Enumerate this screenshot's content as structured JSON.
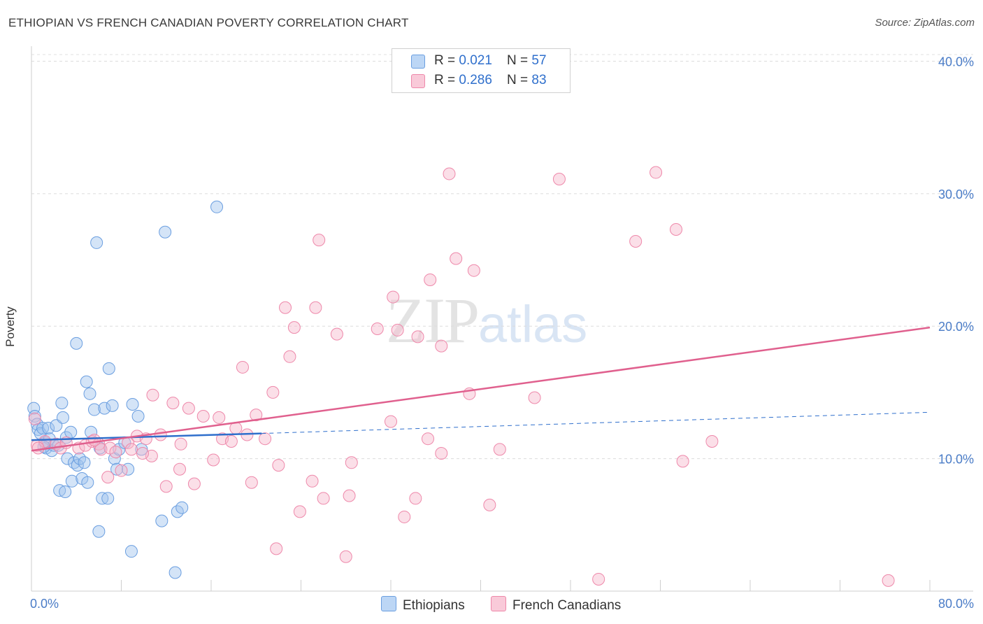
{
  "title": "ETHIOPIAN VS FRENCH CANADIAN POVERTY CORRELATION CHART",
  "source": "Source: ZipAtlas.com",
  "watermark": {
    "zip": "ZIP",
    "atlas": "atlas"
  },
  "legend": [
    {
      "r_label": "R = ",
      "r_value": "0.021",
      "n_label": "N = ",
      "n_value": "57",
      "color": "#9fc4ee",
      "stroke": "#6a9ee0"
    },
    {
      "r_label": "R = ",
      "r_value": "0.286",
      "n_label": "N = ",
      "n_value": "83",
      "color": "#f6b8cc",
      "stroke": "#ee88aa"
    }
  ],
  "bottom_legend": [
    "Ethiopians",
    "French Canadians"
  ],
  "chart_data": {
    "type": "scatter",
    "title": "ETHIOPIAN VS FRENCH CANADIAN POVERTY CORRELATION CHART",
    "xlabel": "",
    "ylabel": "Poverty",
    "xlim": [
      0,
      80
    ],
    "ylim": [
      0,
      40.5
    ],
    "x_tick_labels": [
      "0.0%",
      "80.0%"
    ],
    "y_ticks": [
      10,
      20,
      30,
      40
    ],
    "y_tick_labels": [
      "10.0%",
      "20.0%",
      "30.0%",
      "40.0%"
    ],
    "grid": true,
    "series": [
      {
        "name": "Ethiopians",
        "color": "#6a9ee0",
        "fill": "#9fc4ee",
        "trend": {
          "x0": 0,
          "y0": 11.4,
          "x1": 20.5,
          "y1": 11.9,
          "dash_to_x": 80,
          "dash_to_y": 13.5,
          "color": "#2f6fcc"
        },
        "points": [
          [
            0.2,
            13.8
          ],
          [
            0.3,
            13.2
          ],
          [
            0.5,
            12.6
          ],
          [
            0.6,
            12.2
          ],
          [
            0.8,
            11.9
          ],
          [
            1.0,
            12.3
          ],
          [
            1.2,
            11.2
          ],
          [
            1.3,
            10.8
          ],
          [
            1.5,
            12.3
          ],
          [
            1.6,
            11.5
          ],
          [
            1.8,
            10.6
          ],
          [
            2.0,
            11.0
          ],
          [
            2.2,
            12.5
          ],
          [
            2.4,
            11.0
          ],
          [
            2.7,
            14.2
          ],
          [
            2.8,
            13.1
          ],
          [
            3.1,
            11.6
          ],
          [
            3.2,
            10.0
          ],
          [
            3.5,
            12.0
          ],
          [
            3.6,
            8.3
          ],
          [
            3.8,
            9.7
          ],
          [
            4.1,
            9.5
          ],
          [
            4.3,
            10.0
          ],
          [
            4.5,
            8.5
          ],
          [
            4.7,
            9.7
          ],
          [
            5.0,
            8.2
          ],
          [
            4.9,
            15.8
          ],
          [
            5.2,
            14.9
          ],
          [
            5.3,
            12.0
          ],
          [
            5.6,
            13.7
          ],
          [
            5.8,
            26.3
          ],
          [
            6.1,
            10.8
          ],
          [
            6.3,
            7.0
          ],
          [
            6.5,
            13.8
          ],
          [
            6.8,
            7.0
          ],
          [
            6.9,
            16.8
          ],
          [
            7.2,
            14.0
          ],
          [
            7.4,
            10.0
          ],
          [
            7.6,
            9.2
          ],
          [
            7.8,
            10.7
          ],
          [
            8.3,
            11.2
          ],
          [
            8.6,
            9.2
          ],
          [
            8.9,
            3.0
          ],
          [
            9.5,
            13.2
          ],
          [
            9.8,
            10.7
          ],
          [
            11.6,
            5.3
          ],
          [
            11.9,
            27.1
          ],
          [
            12.8,
            1.4
          ],
          [
            13.0,
            6.0
          ],
          [
            13.4,
            6.3
          ],
          [
            16.5,
            29.0
          ],
          [
            2.5,
            7.6
          ],
          [
            3.0,
            7.5
          ],
          [
            6.0,
            4.5
          ],
          [
            9.0,
            14.1
          ],
          [
            1.1,
            10.9
          ],
          [
            4.0,
            18.7
          ]
        ]
      },
      {
        "name": "French Canadians",
        "color": "#ee88aa",
        "fill": "#f6b8cc",
        "trend": {
          "x0": 0,
          "y0": 10.6,
          "x1": 80,
          "y1": 19.9,
          "color": "#e0608e"
        },
        "points": [
          [
            0.3,
            13.0
          ],
          [
            0.5,
            11.0
          ],
          [
            1.2,
            11.3
          ],
          [
            2.2,
            11.1
          ],
          [
            2.6,
            10.8
          ],
          [
            3.1,
            11.2
          ],
          [
            4.2,
            10.8
          ],
          [
            4.8,
            11.0
          ],
          [
            5.4,
            11.3
          ],
          [
            6.0,
            11.1
          ],
          [
            6.2,
            10.7
          ],
          [
            6.8,
            8.6
          ],
          [
            7.0,
            10.8
          ],
          [
            7.5,
            10.5
          ],
          [
            8.0,
            9.1
          ],
          [
            8.6,
            11.2
          ],
          [
            8.9,
            10.7
          ],
          [
            9.4,
            11.7
          ],
          [
            10.2,
            11.5
          ],
          [
            10.7,
            10.2
          ],
          [
            10.8,
            14.8
          ],
          [
            11.5,
            11.8
          ],
          [
            12.0,
            7.9
          ],
          [
            12.6,
            14.2
          ],
          [
            13.2,
            9.2
          ],
          [
            13.3,
            11.1
          ],
          [
            14.0,
            13.8
          ],
          [
            14.5,
            8.1
          ],
          [
            15.3,
            13.2
          ],
          [
            16.2,
            9.9
          ],
          [
            16.7,
            13.1
          ],
          [
            17.0,
            11.5
          ],
          [
            17.8,
            11.3
          ],
          [
            18.2,
            12.3
          ],
          [
            18.8,
            16.9
          ],
          [
            19.2,
            11.8
          ],
          [
            19.6,
            8.2
          ],
          [
            20.0,
            13.3
          ],
          [
            20.8,
            11.5
          ],
          [
            21.5,
            15.0
          ],
          [
            21.8,
            3.2
          ],
          [
            22.0,
            9.5
          ],
          [
            22.6,
            21.4
          ],
          [
            23.0,
            17.7
          ],
          [
            23.4,
            19.9
          ],
          [
            23.9,
            6.0
          ],
          [
            25.0,
            8.3
          ],
          [
            25.3,
            21.4
          ],
          [
            25.6,
            26.5
          ],
          [
            26.0,
            7.0
          ],
          [
            27.2,
            19.4
          ],
          [
            28.0,
            2.6
          ],
          [
            28.3,
            7.2
          ],
          [
            28.5,
            9.7
          ],
          [
            30.8,
            19.8
          ],
          [
            32.0,
            12.8
          ],
          [
            32.2,
            22.2
          ],
          [
            32.6,
            19.7
          ],
          [
            33.2,
            5.6
          ],
          [
            34.2,
            7.0
          ],
          [
            34.4,
            19.2
          ],
          [
            35.3,
            11.5
          ],
          [
            35.5,
            23.5
          ],
          [
            36.5,
            10.4
          ],
          [
            36.5,
            18.5
          ],
          [
            37.2,
            31.5
          ],
          [
            37.8,
            25.1
          ],
          [
            39.4,
            24.2
          ],
          [
            39.0,
            14.9
          ],
          [
            40.8,
            6.5
          ],
          [
            41.7,
            10.7
          ],
          [
            44.8,
            14.6
          ],
          [
            47.0,
            31.1
          ],
          [
            50.5,
            0.9
          ],
          [
            53.8,
            26.4
          ],
          [
            55.6,
            31.6
          ],
          [
            57.4,
            27.3
          ],
          [
            58.0,
            9.8
          ],
          [
            60.6,
            11.3
          ],
          [
            76.3,
            0.8
          ],
          [
            0.6,
            10.8
          ],
          [
            9.9,
            10.4
          ],
          [
            5.6,
            11.4
          ]
        ]
      }
    ]
  }
}
